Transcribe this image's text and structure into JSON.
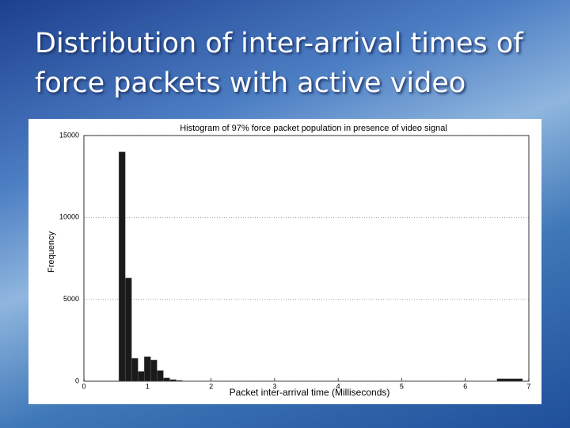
{
  "slide_title": "Distribution of inter-arrival times of force packets with active video",
  "chart_data": {
    "type": "histogram",
    "title": "Histogram of 97% force packet population in presence of video signal",
    "x_label": "Packet inter-arrival time (Milliseconds)",
    "y_label": "Frequency",
    "bins": [
      0.55,
      0.65,
      0.75,
      0.85,
      0.95,
      1.05,
      1.15,
      1.25,
      1.35,
      1.45,
      1.55,
      6.5,
      6.9
    ],
    "counts": [
      14000,
      6300,
      1400,
      600,
      1500,
      1300,
      650,
      200,
      100,
      50,
      20,
      150
    ],
    "color": "#1a1a1a",
    "xlim": [
      0,
      7
    ],
    "xticks": [
      0,
      1,
      2,
      3,
      4,
      5,
      6,
      7
    ],
    "ylim": [
      0,
      15000
    ],
    "yticks": [
      0,
      5000,
      10000,
      15000
    ],
    "grid": true
  }
}
